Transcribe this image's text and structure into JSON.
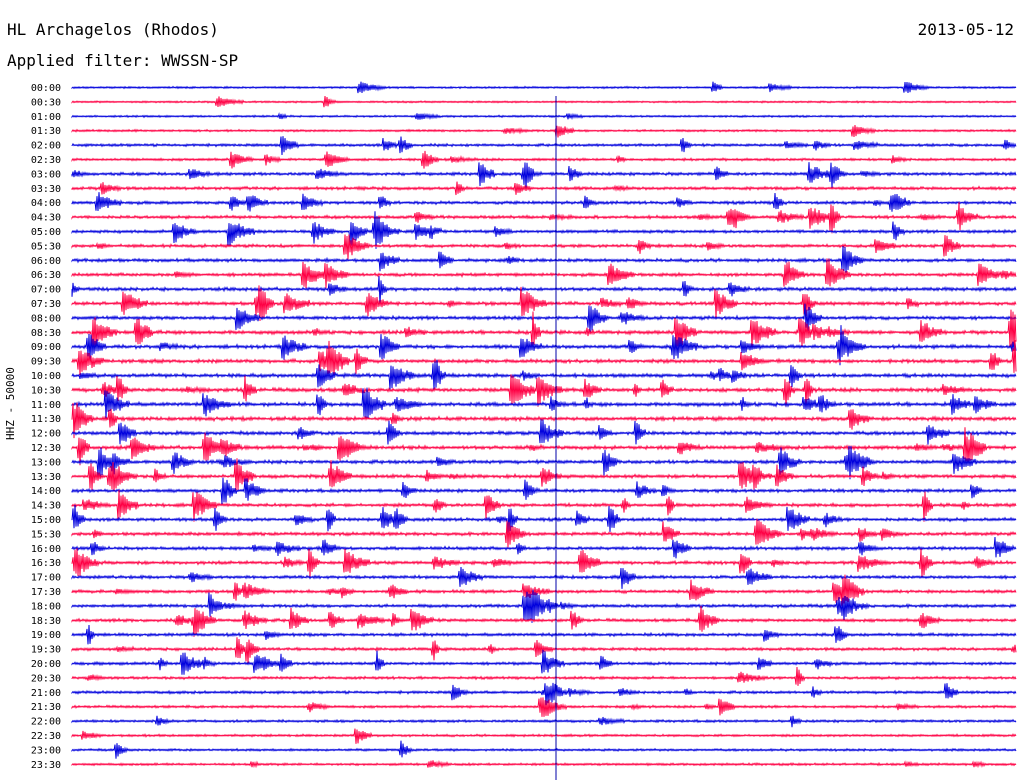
{
  "header": {
    "station": "HL Archagelos (Rhodos)",
    "date": "2013-05-12",
    "filter": "Applied filter: WWSSN-SP"
  },
  "axis": {
    "ylabel": "HHZ - 50000"
  },
  "colors": {
    "trace_a": "#0000dd",
    "trace_b": "#ff0044"
  },
  "chart_data": {
    "type": "line",
    "subtype": "helicorder",
    "ylabel": "HHZ - 50000",
    "rows": [
      "00:00",
      "00:30",
      "01:00",
      "01:30",
      "02:00",
      "02:30",
      "03:00",
      "03:30",
      "04:00",
      "04:30",
      "05:00",
      "05:30",
      "06:00",
      "06:30",
      "07:00",
      "07:30",
      "08:00",
      "08:30",
      "09:00",
      "09:30",
      "10:00",
      "10:30",
      "11:00",
      "11:30",
      "12:00",
      "12:30",
      "13:00",
      "13:30",
      "14:00",
      "14:30",
      "15:00",
      "15:30",
      "16:00",
      "16:30",
      "17:00",
      "17:30",
      "18:00",
      "18:30",
      "19:00",
      "19:30",
      "20:00",
      "20:30",
      "21:00",
      "21:30",
      "22:00",
      "22:30",
      "23:00",
      "23:30"
    ],
    "row_colors": [
      "trace_a",
      "trace_b"
    ],
    "trace_minutes": 30,
    "activity": [
      0.4,
      0.3,
      0.4,
      0.5,
      0.8,
      0.7,
      1.0,
      1.0,
      1.0,
      1.0,
      1.0,
      1.0,
      1.1,
      1.1,
      1.2,
      1.2,
      1.2,
      1.3,
      1.3,
      1.3,
      1.3,
      1.4,
      1.4,
      1.4,
      1.3,
      1.3,
      1.2,
      1.2,
      1.1,
      1.1,
      1.1,
      1.1,
      1.1,
      1.1,
      1.0,
      1.0,
      1.0,
      1.0,
      1.0,
      0.9,
      0.9,
      0.8,
      0.8,
      0.7,
      0.7,
      0.6,
      0.6,
      0.6
    ]
  }
}
